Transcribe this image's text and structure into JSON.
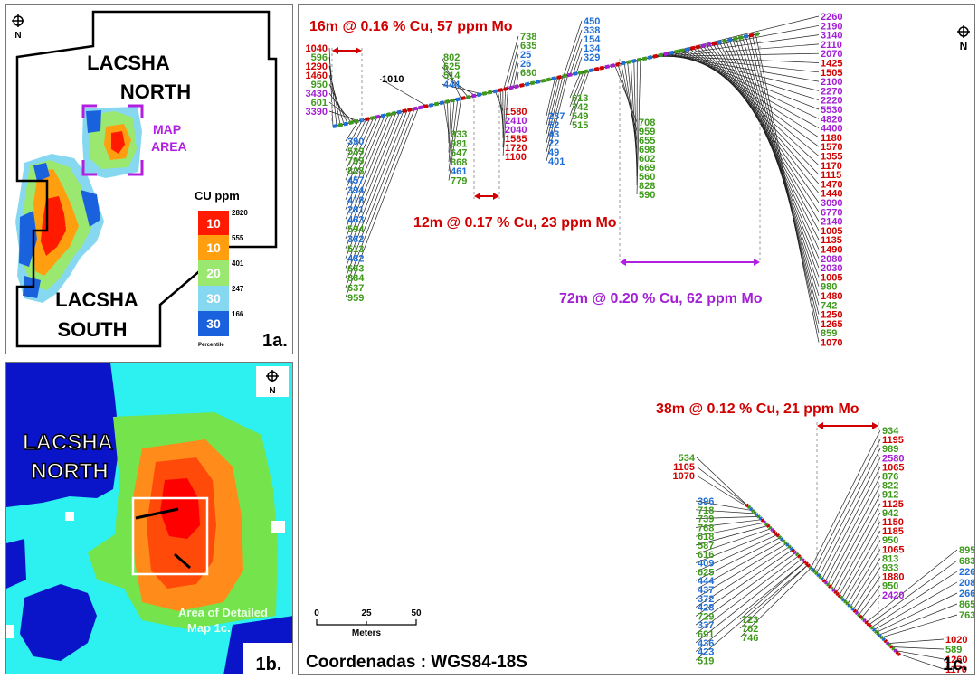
{
  "panel_1a": {
    "label_north_1": "LACSHA",
    "label_north_2": "NORTH",
    "label_south_1": "LACSHA",
    "label_south_2": "SOUTH",
    "map_area_1": "MAP",
    "map_area_2": "AREA",
    "panel_tag": "1a.",
    "north_letter": "N",
    "legend": {
      "title": "CU ppm",
      "percentiles": [
        "10",
        "10",
        "20",
        "30",
        "30"
      ],
      "breaks": [
        "2820",
        "555",
        "401",
        "247",
        "166"
      ],
      "footer": "Percentile",
      "colors": [
        "#ff1a00",
        "#ff9f0f",
        "#9be870",
        "#86d8f0",
        "#1a62dd"
      ]
    }
  },
  "panel_1b": {
    "label_north_1": "LACSHA",
    "label_north_2": "NORTH",
    "detail_1": "Area of Detailed",
    "detail_2": "Map 1c.",
    "panel_tag": "1b.",
    "north_letter": "N"
  },
  "panel_1c": {
    "north_letter": "N",
    "panel_tag": "1c.",
    "intercepts": [
      "16m @ 0.16 % Cu, 57 ppm Mo",
      "12m @ 0.17 % Cu, 23 ppm Mo",
      "72m @ 0.20 % Cu, 62 ppm Mo",
      "38m @ 0.12 % Cu, 21 ppm Mo"
    ],
    "scale": {
      "ticks": [
        "0",
        "25",
        "50"
      ],
      "unit": "Meters"
    },
    "coords": "Coordenadas : WGS84-18S",
    "groups": {
      "g1_top": [
        "1040",
        "596",
        "1290",
        "1460",
        "950",
        "3430",
        "601",
        "3390"
      ],
      "g1_top_colors": [
        "r",
        "g",
        "r",
        "r",
        "g",
        "p",
        "g",
        "p"
      ],
      "g1_bottom": [
        "390",
        "539",
        "799",
        "828",
        "457",
        "394",
        "418",
        "281",
        "463",
        "594",
        "382",
        "513",
        "482",
        "663",
        "884",
        "637",
        "959"
      ],
      "g1_bottom_colors": [
        "b",
        "g",
        "g",
        "g",
        "b",
        "b",
        "b",
        "b",
        "b",
        "g",
        "b",
        "g",
        "b",
        "g",
        "g",
        "g",
        "g"
      ],
      "g2_single": [
        "1010"
      ],
      "g2_top": [
        "802",
        "625",
        "514",
        "444"
      ],
      "g2_top_colors": [
        "g",
        "g",
        "g",
        "b"
      ],
      "g2_bottom": [
        "833",
        "981",
        "647",
        "868",
        "461",
        "779"
      ],
      "g2_bottom_colors": [
        "g",
        "g",
        "g",
        "g",
        "b",
        "g"
      ],
      "g3_top": [
        "738",
        "635",
        "25",
        "26",
        "680"
      ],
      "g3_top_colors": [
        "g",
        "g",
        "b",
        "b",
        "g"
      ],
      "g3_bottom": [
        "1580",
        "2410",
        "2040",
        "1585",
        "1720",
        "1100"
      ],
      "g3_bottom_colors": [
        "r",
        "p",
        "p",
        "r",
        "r",
        "r"
      ],
      "g4_top": [
        "450",
        "338",
        "154",
        "134",
        "329"
      ],
      "g4_top_colors": [
        "b",
        "b",
        "b",
        "b",
        "b"
      ],
      "g4_bottom": [
        "237",
        "52",
        "43",
        "22",
        "49",
        "401"
      ],
      "g4_bottom_colors": [
        "b",
        "b",
        "b",
        "b",
        "b",
        "b"
      ],
      "g4_right": [
        "613",
        "742",
        "549",
        "515"
      ],
      "g4_right_colors": [
        "g",
        "g",
        "g",
        "g"
      ],
      "g5": [
        "708",
        "959",
        "655",
        "698",
        "602",
        "669",
        "560",
        "828",
        "590"
      ],
      "g5_colors": [
        "g",
        "g",
        "g",
        "g",
        "g",
        "g",
        "g",
        "g",
        "g"
      ],
      "g6": [
        "2260",
        "2190",
        "3140",
        "2110",
        "2070",
        "1425",
        "1505",
        "2100",
        "2270",
        "2220",
        "5530",
        "4820",
        "4400",
        "1180",
        "1570",
        "1355",
        "1170",
        "1115",
        "1470",
        "1440",
        "3090",
        "6770",
        "2140",
        "1005",
        "1135",
        "1490",
        "2080",
        "2030",
        "1005",
        "980",
        "1480",
        "742",
        "1250",
        "1265",
        "859",
        "1070"
      ],
      "g6_colors": [
        "p",
        "p",
        "p",
        "p",
        "p",
        "r",
        "r",
        "p",
        "p",
        "p",
        "p",
        "p",
        "p",
        "r",
        "r",
        "r",
        "r",
        "r",
        "r",
        "r",
        "p",
        "p",
        "p",
        "r",
        "r",
        "r",
        "p",
        "p",
        "r",
        "g",
        "r",
        "g",
        "r",
        "r",
        "g",
        "r"
      ],
      "h2_top": [
        "534",
        "1105",
        "1070"
      ],
      "h2_top_colors": [
        "g",
        "r",
        "r"
      ],
      "h2_left": [
        "396",
        "718",
        "739",
        "768",
        "618",
        "587",
        "616",
        "409",
        "625",
        "444",
        "437",
        "372",
        "428",
        "729",
        "337",
        "691",
        "436",
        "423",
        "519"
      ],
      "h2_left_colors": [
        "b",
        "g",
        "g",
        "g",
        "g",
        "g",
        "g",
        "b",
        "g",
        "b",
        "b",
        "b",
        "b",
        "g",
        "b",
        "g",
        "b",
        "b",
        "g"
      ],
      "h2_mid": [
        "723",
        "762",
        "746"
      ],
      "h2_mid_colors": [
        "g",
        "g",
        "g"
      ],
      "h2_right": [
        "934",
        "1195",
        "989",
        "2580",
        "1065",
        "876",
        "822",
        "912",
        "1125",
        "942",
        "1150",
        "1185",
        "950",
        "1065",
        "813",
        "933",
        "1880",
        "950",
        "2420"
      ],
      "h2_right_colors": [
        "g",
        "r",
        "g",
        "p",
        "r",
        "g",
        "g",
        "g",
        "r",
        "g",
        "r",
        "r",
        "g",
        "r",
        "g",
        "g",
        "r",
        "g",
        "p"
      ],
      "h2_far": [
        "895",
        "683",
        "226",
        "208",
        "266",
        "865",
        "763"
      ],
      "h2_far_colors": [
        "g",
        "g",
        "b",
        "b",
        "b",
        "g",
        "g"
      ],
      "h2_end": [
        "1020",
        "589",
        "1260",
        "1170"
      ],
      "h2_end_colors": [
        "r",
        "g",
        "r",
        "r"
      ]
    }
  },
  "colors": {
    "r": "#d00000",
    "g": "#3f9a1c",
    "b": "#1f6fd6",
    "p": "#a21fd4",
    "purple_line": "#b21fe0"
  }
}
